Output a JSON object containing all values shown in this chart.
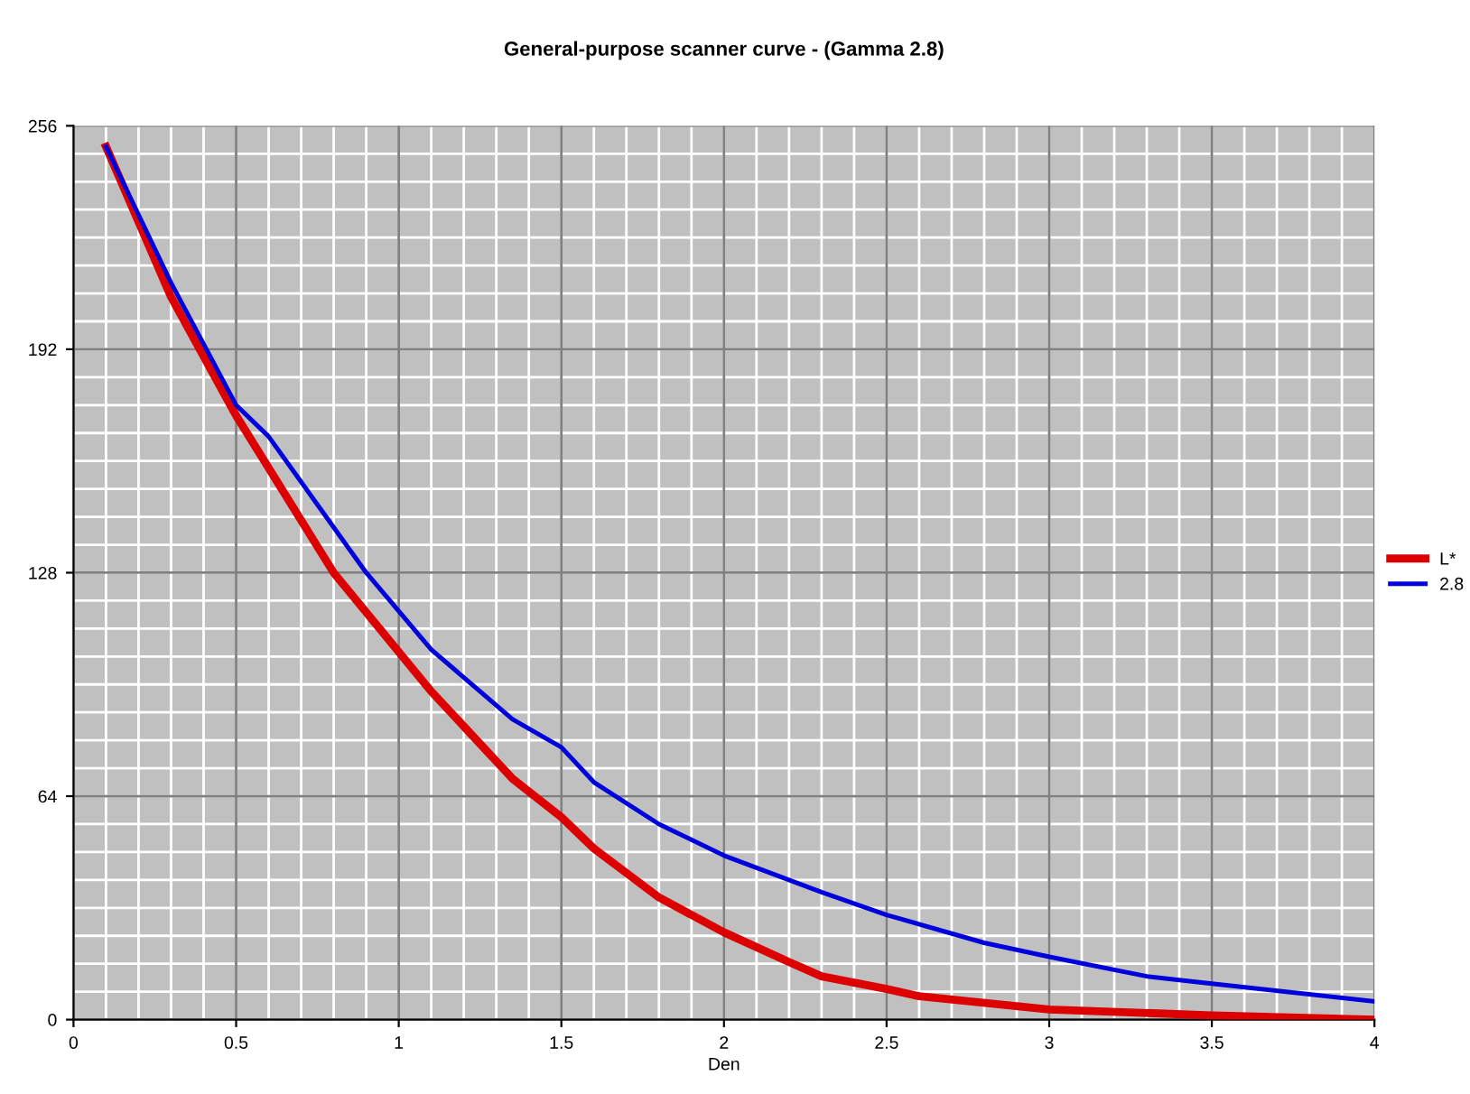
{
  "chart_data": {
    "type": "line",
    "title": "General-purpose scanner curve - (Gamma 2.8)",
    "xlabel": "Den",
    "xlim": [
      0,
      4
    ],
    "xticks": [
      0,
      0.5,
      1,
      1.5,
      2,
      2.5,
      3,
      3.5,
      4
    ],
    "ylim": [
      0,
      256
    ],
    "yticks": [
      0,
      64,
      128,
      192,
      256
    ],
    "grid": true,
    "legend": "right",
    "marker": "none",
    "line_style": "solid",
    "series": [
      {
        "name": "L*",
        "color": "#dd0000",
        "x": [
          0.1,
          0.3,
          0.5,
          0.8,
          1.1,
          1.35,
          1.5,
          1.6,
          1.8,
          2.0,
          2.2,
          2.3,
          2.5,
          2.6,
          3.0,
          3.5,
          4.0
        ],
        "values": [
          250,
          207,
          173,
          128,
          94,
          69,
          58,
          49,
          35,
          25,
          16.5,
          12.4,
          8.8,
          6.7,
          2.9,
          1.2,
          0
        ]
      },
      {
        "name": "2.8",
        "color": "#0000dd",
        "x": [
          0.1,
          0.3,
          0.5,
          0.6,
          0.9,
          1.1,
          1.35,
          1.5,
          1.6,
          1.8,
          2.0,
          2.3,
          2.5,
          2.8,
          3.0,
          3.3,
          3.5,
          4.0
        ],
        "values": [
          250,
          211,
          176,
          167,
          128,
          106,
          86,
          78,
          68,
          56,
          47,
          36.5,
          30,
          22,
          18,
          12.4,
          10.3,
          5.2
        ]
      }
    ]
  }
}
